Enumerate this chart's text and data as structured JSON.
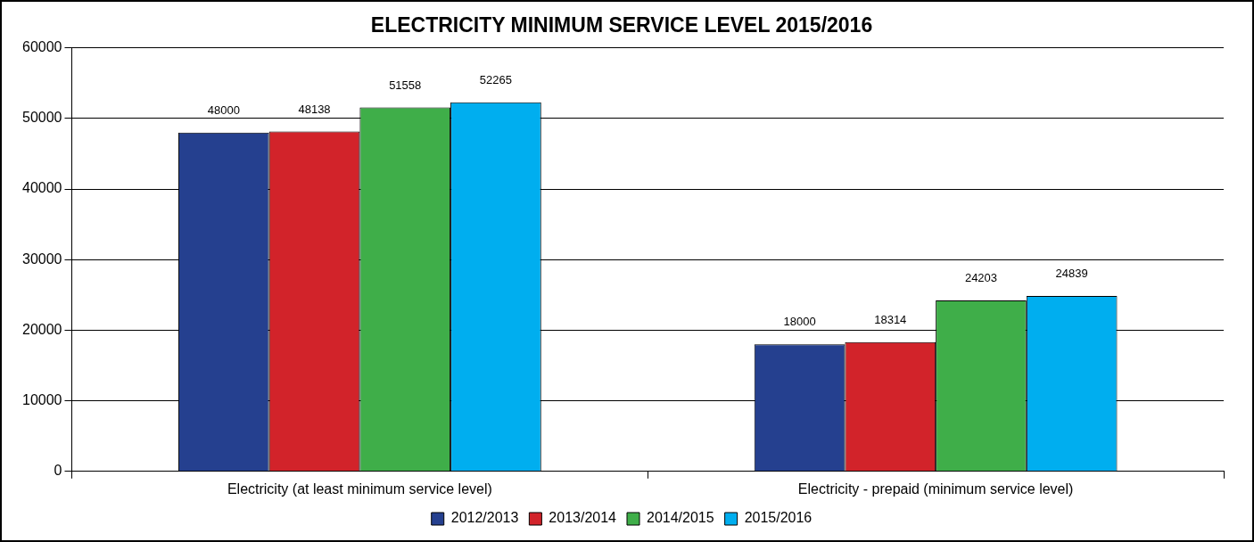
{
  "chart_data": {
    "type": "bar",
    "title": "ELECTRICITY MINIMUM SERVICE LEVEL 2015/2016",
    "categories": [
      "Electricity (at least minimum service level)",
      "Electricity - prepaid (minimum service level)"
    ],
    "series": [
      {
        "name": "2012/2013",
        "color": "#25408f",
        "values": [
          48000,
          18000
        ]
      },
      {
        "name": "2013/2014",
        "color": "#d2232a",
        "values": [
          48138,
          18314
        ]
      },
      {
        "name": "2014/2015",
        "color": "#3fae49",
        "values": [
          51558,
          24203
        ]
      },
      {
        "name": "2015/2016",
        "color": "#00aeef",
        "values": [
          52265,
          24839
        ]
      }
    ],
    "ylim": [
      0,
      60000
    ],
    "yticks": [
      0,
      10000,
      20000,
      30000,
      40000,
      50000,
      60000
    ],
    "grid": "y",
    "legend": "bottom",
    "data_labels": true
  }
}
